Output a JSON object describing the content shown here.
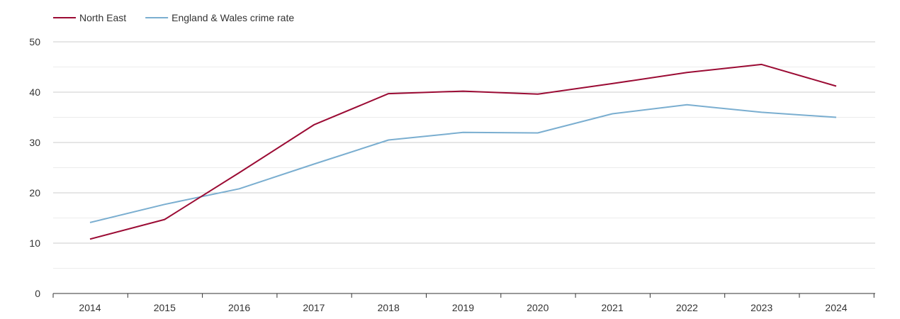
{
  "chart_data": {
    "type": "line",
    "title": "",
    "xlabel": "",
    "ylabel": "",
    "categories": [
      "2014",
      "2015",
      "2016",
      "2017",
      "2018",
      "2019",
      "2020",
      "2021",
      "2022",
      "2023",
      "2024"
    ],
    "ylim": [
      0,
      50
    ],
    "yticks": [
      0,
      10,
      20,
      30,
      40,
      50
    ],
    "grid": true,
    "legend_position": "top-left",
    "series": [
      {
        "name": "North East",
        "color": "#9b0b34",
        "values": [
          10.8,
          14.7,
          24.0,
          33.5,
          39.7,
          40.2,
          39.6,
          41.7,
          43.9,
          45.5,
          41.2
        ]
      },
      {
        "name": "England & Wales crime rate",
        "color": "#7aaed0",
        "values": [
          14.1,
          17.7,
          20.8,
          25.7,
          30.5,
          32.0,
          31.9,
          35.7,
          37.5,
          36.0,
          35.0
        ]
      }
    ]
  }
}
